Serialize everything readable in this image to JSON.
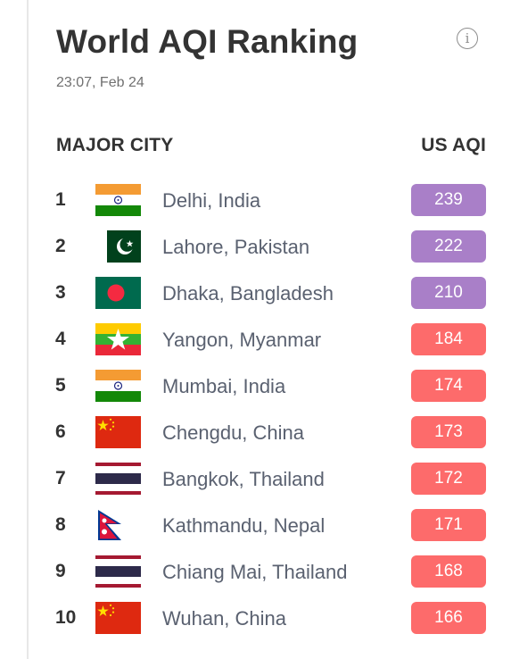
{
  "header": {
    "title": "World AQI Ranking",
    "timestamp": "23:07, Feb 24",
    "info_icon": "info-icon"
  },
  "columns": {
    "city": "MAJOR CITY",
    "aqi": "US AQI"
  },
  "colors": {
    "very_unhealthy": "#a97fc8",
    "unhealthy": "#fd6b6b"
  },
  "rankings": [
    {
      "rank": "1",
      "city": "Delhi, India",
      "aqi": "239",
      "flag": "india",
      "level": "very_unhealthy"
    },
    {
      "rank": "2",
      "city": "Lahore, Pakistan",
      "aqi": "222",
      "flag": "pakistan",
      "level": "very_unhealthy"
    },
    {
      "rank": "3",
      "city": "Dhaka, Bangladesh",
      "aqi": "210",
      "flag": "bangladesh",
      "level": "very_unhealthy"
    },
    {
      "rank": "4",
      "city": "Yangon, Myanmar",
      "aqi": "184",
      "flag": "myanmar",
      "level": "unhealthy"
    },
    {
      "rank": "5",
      "city": "Mumbai, India",
      "aqi": "174",
      "flag": "india",
      "level": "unhealthy"
    },
    {
      "rank": "6",
      "city": "Chengdu, China",
      "aqi": "173",
      "flag": "china",
      "level": "unhealthy"
    },
    {
      "rank": "7",
      "city": "Bangkok, Thailand",
      "aqi": "172",
      "flag": "thailand",
      "level": "unhealthy"
    },
    {
      "rank": "8",
      "city": "Kathmandu, Nepal",
      "aqi": "171",
      "flag": "nepal",
      "level": "unhealthy"
    },
    {
      "rank": "9",
      "city": "Chiang Mai, Thailand",
      "aqi": "168",
      "flag": "thailand",
      "level": "unhealthy"
    },
    {
      "rank": "10",
      "city": "Wuhan, China",
      "aqi": "166",
      "flag": "china",
      "level": "unhealthy"
    }
  ]
}
